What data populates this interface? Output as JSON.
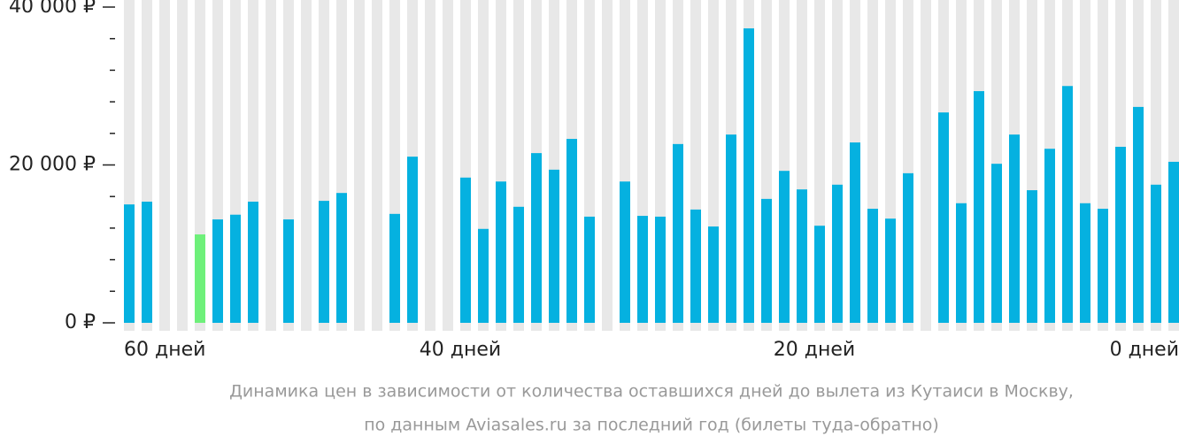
{
  "chart_data": {
    "type": "bar",
    "caption": [
      "Динамика цен в зависимости от количества оставшихся дней до вылета из Кутаиси в Москву,",
      "по данным Aviasales.ru за последний год (билеты туда-обратно)"
    ],
    "categories": [
      "60 дней",
      null,
      null,
      null,
      null,
      null,
      null,
      null,
      null,
      null,
      null,
      null,
      null,
      null,
      null,
      null,
      null,
      null,
      null,
      "40 дней",
      null,
      null,
      null,
      null,
      null,
      null,
      null,
      null,
      null,
      null,
      null,
      null,
      null,
      null,
      null,
      null,
      null,
      null,
      null,
      "20 дней",
      null,
      null,
      null,
      null,
      null,
      null,
      null,
      null,
      null,
      null,
      null,
      null,
      null,
      null,
      null,
      null,
      null,
      null,
      null,
      "0 дней"
    ],
    "values": [
      15000,
      15350,
      null,
      null,
      11200,
      13100,
      13700,
      15350,
      null,
      13100,
      null,
      15450,
      16450,
      null,
      null,
      13800,
      21050,
      null,
      null,
      18400,
      11900,
      17900,
      14700,
      21500,
      19400,
      23300,
      13450,
      null,
      17900,
      13550,
      13450,
      22650,
      14350,
      12200,
      23850,
      37300,
      15700,
      19250,
      16900,
      12300,
      17500,
      22850,
      14450,
      13200,
      18950,
      null,
      26650,
      15150,
      29350,
      20150,
      23850,
      16800,
      22050,
      30000,
      15150,
      14450,
      22300,
      27350,
      17500,
      20400
    ],
    "color": "#05b1e0",
    "colors": {
      "4": "#6ef07a"
    },
    "ylim": [
      0,
      40000
    ],
    "yticks": [
      {
        "value": 0,
        "label": "0 ₽"
      },
      {
        "value": 20000,
        "label": "20 000 ₽"
      },
      {
        "value": 40000,
        "label": "40 000 ₽"
      }
    ],
    "yminorticks": [
      4000,
      8000,
      12000,
      16000,
      24000,
      28000,
      32000,
      36000
    ]
  }
}
